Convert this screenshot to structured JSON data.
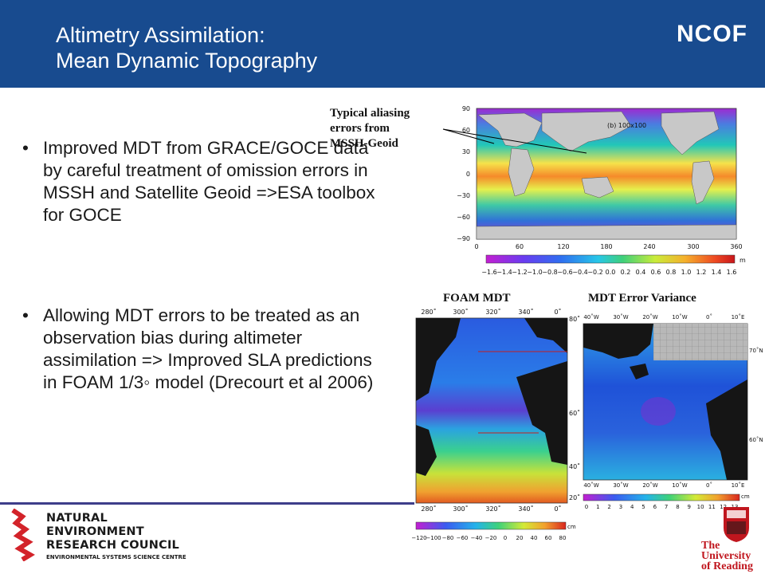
{
  "header": {
    "title_line1": "Altimetry Assimilation:",
    "title_line2": "Mean Dynamic Topography",
    "logo": "NCOF"
  },
  "bullets": [
    "Improved MDT from GRACE/GOCE data by careful treatment of omission errors in MSSH and Satellite Geoid =>ESA toolbox for GOCE",
    "Allowing MDT errors to be treated as an observation bias during altimeter assimilation => Improved SLA predictions in FOAM 1/3◦ model (Drecourt et al 2006)"
  ],
  "annotation": {
    "line1": "Typical aliasing",
    "line2": "errors from",
    "line3": "MSSH-Geoid"
  },
  "global_map": {
    "panel_title": "(b) 100x100",
    "lat_ticks": [
      "90",
      "60",
      "30",
      "0",
      "−30",
      "−60",
      "−90"
    ],
    "lon_ticks": [
      "0",
      "60",
      "120",
      "180",
      "240",
      "300",
      "360"
    ],
    "colorbar_unit": "m",
    "colorbar_ticks": [
      "−1.6",
      "−1.4",
      "−1.2",
      "−1.0",
      "−0.8",
      "−0.6",
      "−0.4",
      "−0.2",
      "0.0",
      "0.2",
      "0.4",
      "0.6",
      "0.8",
      "1.0",
      "1.2",
      "1.4",
      "1.6"
    ]
  },
  "foam_map": {
    "label": "FOAM MDT",
    "lon_ticks": [
      "280˚",
      "300˚",
      "320˚",
      "340˚",
      "0˚"
    ],
    "lat_ticks": [
      "80˚",
      "60˚",
      "40˚",
      "20˚"
    ],
    "colorbar_unit": "cm",
    "colorbar_ticks": [
      "−120",
      "−100",
      "−80",
      "−60",
      "−40",
      "−20",
      "0",
      "20",
      "40",
      "60",
      "80"
    ]
  },
  "error_map": {
    "label": "MDT Error Variance",
    "lon_ticks": [
      "40˚W",
      "30˚W",
      "20˚W",
      "10˚W",
      "0˚",
      "10˚E"
    ],
    "lat_ticks": [
      "70˚N",
      "60˚N"
    ],
    "colorbar_unit": "cm",
    "colorbar_ticks": [
      "0",
      "1",
      "2",
      "3",
      "4",
      "5",
      "6",
      "7",
      "8",
      "9",
      "10",
      "11",
      "12",
      "13"
    ]
  },
  "footer": {
    "nerc_line1": "NATURAL",
    "nerc_line2": "ENVIRONMENT",
    "nerc_line3": "RESEARCH COUNCIL",
    "nerc_sub": "ENVIRONMENTAL SYSTEMS SCIENCE CENTRE",
    "uor_line1": "The",
    "uor_line2": "University",
    "uor_line3": "of Reading"
  },
  "colors": {
    "header_bg": "#184b8f",
    "footer_rule": "#3d3d8a",
    "uor_red": "#c0161e"
  }
}
